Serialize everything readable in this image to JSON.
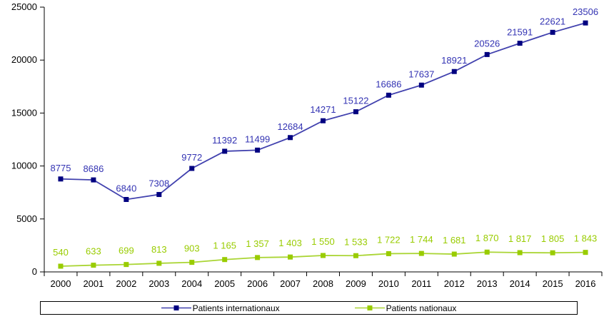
{
  "chart_data": {
    "type": "line",
    "title": "",
    "xlabel": "",
    "ylabel": "",
    "ylim": [
      0,
      25000
    ],
    "yticks": [
      0,
      5000,
      10000,
      15000,
      20000,
      25000
    ],
    "grid": false,
    "legend_position": "bottom",
    "axis_color": "#000000",
    "tick_label_color": "#000000",
    "categories": [
      "2000",
      "2001",
      "2002",
      "2003",
      "2004",
      "2005",
      "2006",
      "2007",
      "2008",
      "2009",
      "2010",
      "2011",
      "2012",
      "2013",
      "2014",
      "2015",
      "2016"
    ],
    "series": [
      {
        "name": "Patients internationaux",
        "values": [
          8775,
          8686,
          6840,
          7308,
          9772,
          11392,
          11499,
          12684,
          14271,
          15122,
          16686,
          17637,
          18921,
          20526,
          21591,
          22621,
          23506
        ],
        "labels": [
          "8775",
          "8686",
          "6840",
          "7308",
          "9772",
          "11392",
          "11499",
          "12684",
          "14271",
          "15122",
          "16686",
          "17637",
          "18921",
          "20526",
          "21591",
          "22621",
          "23506"
        ],
        "marker_color": "#000080",
        "line_color": "#4141ae",
        "label_color": "#3333b3"
      },
      {
        "name": "Patients nationaux",
        "values": [
          540,
          633,
          699,
          813,
          903,
          1165,
          1357,
          1403,
          1550,
          1533,
          1722,
          1744,
          1681,
          1870,
          1817,
          1805,
          1843
        ],
        "labels": [
          "540",
          "633",
          "699",
          "813",
          "903",
          "1 165",
          "1 357",
          "1 403",
          "1 550",
          "1 533",
          "1 722",
          "1 744",
          "1 681",
          "1 870",
          "1 817",
          "1 805",
          "1 843"
        ],
        "marker_color": "#99cc00",
        "line_color": "#aad534",
        "label_color": "#99cc00"
      }
    ]
  }
}
